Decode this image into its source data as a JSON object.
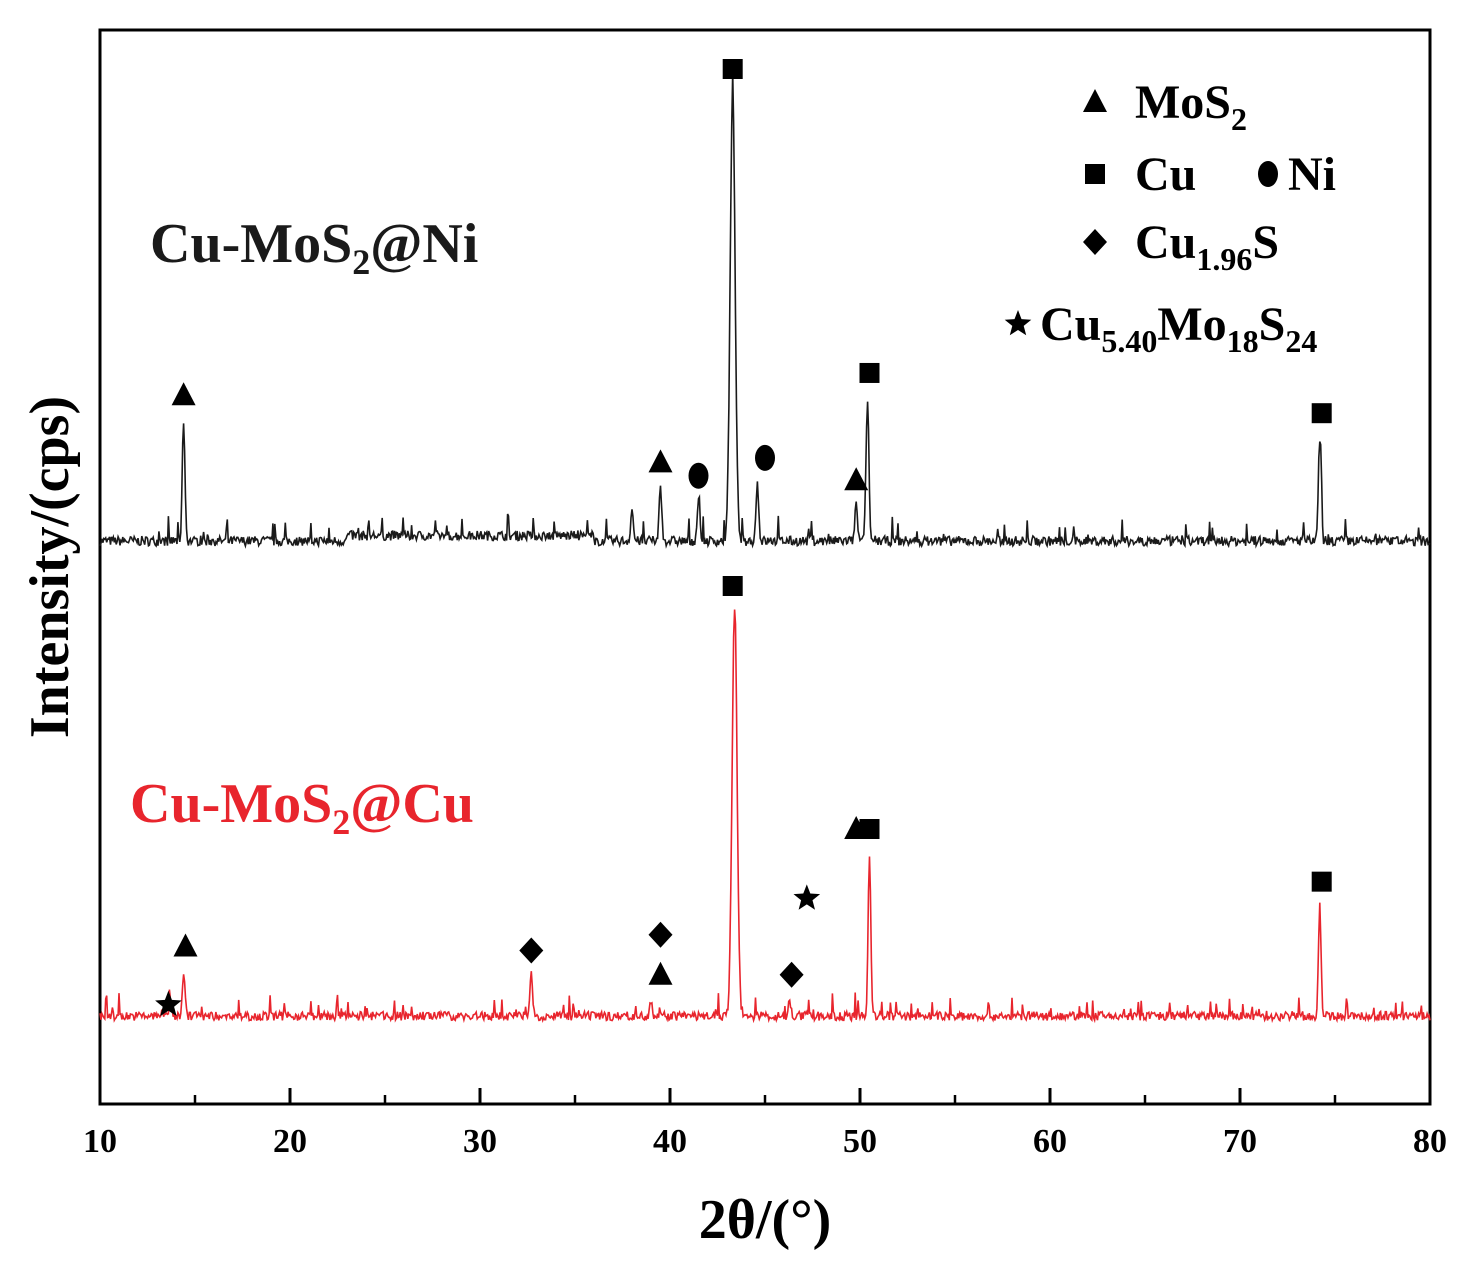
{
  "chart_data": {
    "type": "line",
    "xlabel": "2θ/(°)",
    "ylabel": "Intensity/(cps)",
    "xlim": [
      10,
      80
    ],
    "x_ticks": [
      "10",
      "20",
      "30",
      "40",
      "50",
      "60",
      "70",
      "80"
    ],
    "grid": false,
    "legend_position": "top-right",
    "legend": [
      {
        "marker": "triangle",
        "parts": [
          {
            "t": "MoS"
          },
          {
            "t": "2",
            "sub": true
          }
        ]
      },
      {
        "marker": "square",
        "parts": [
          {
            "t": "Cu "
          }
        ],
        "marker2": "circle",
        "parts2": [
          {
            "t": "Ni"
          }
        ]
      },
      {
        "marker": "diamond",
        "parts": [
          {
            "t": "Cu"
          },
          {
            "t": "1.96",
            "sub": true
          },
          {
            "t": "S"
          }
        ]
      },
      {
        "marker": "star",
        "parts": [
          {
            "t": "Cu"
          },
          {
            "t": "5.40",
            "sub": true
          },
          {
            "t": "Mo"
          },
          {
            "t": "18",
            "sub": true
          },
          {
            "t": "S"
          },
          {
            "t": "24",
            "sub": true
          }
        ]
      }
    ],
    "series": [
      {
        "name_parts": [
          {
            "t": "Cu-MoS"
          },
          {
            "t": "2",
            "sub": true
          },
          {
            "t": "@Ni"
          }
        ],
        "color": "#1a1a1a",
        "peaks": [
          {
            "x": 14.4,
            "h": 0.27
          },
          {
            "x": 38.0,
            "h": 0.07
          },
          {
            "x": 39.5,
            "h": 0.12
          },
          {
            "x": 41.5,
            "h": 0.09
          },
          {
            "x": 43.3,
            "h": 1.0
          },
          {
            "x": 44.6,
            "h": 0.13
          },
          {
            "x": 49.8,
            "h": 0.08
          },
          {
            "x": 50.4,
            "h": 0.32
          },
          {
            "x": 74.2,
            "h": 0.23
          }
        ],
        "markers": [
          {
            "type": "triangle",
            "x": 14.4
          },
          {
            "type": "triangle",
            "x": 39.5
          },
          {
            "type": "circle",
            "x": 41.5
          },
          {
            "type": "square",
            "x": 43.3
          },
          {
            "type": "circle",
            "x": 45.0
          },
          {
            "type": "triangle",
            "x": 49.8
          },
          {
            "type": "square",
            "x": 50.5
          },
          {
            "type": "square",
            "x": 74.3
          }
        ]
      },
      {
        "name_parts": [
          {
            "t": "Cu-MoS"
          },
          {
            "t": "2",
            "sub": true
          },
          {
            "t": "@Cu"
          }
        ],
        "color": "#e8252d",
        "peaks": [
          {
            "x": 13.7,
            "h": 0.04
          },
          {
            "x": 14.4,
            "h": 0.11
          },
          {
            "x": 32.7,
            "h": 0.1
          },
          {
            "x": 39.0,
            "h": 0.04
          },
          {
            "x": 43.4,
            "h": 1.0
          },
          {
            "x": 46.3,
            "h": 0.04
          },
          {
            "x": 50.5,
            "h": 0.4
          },
          {
            "x": 74.2,
            "h": 0.27
          }
        ],
        "markers": [
          {
            "type": "star",
            "x": 13.6
          },
          {
            "type": "triangle",
            "x": 14.5
          },
          {
            "type": "diamond",
            "x": 32.7
          },
          {
            "type": "diamond",
            "x": 39.5
          },
          {
            "type": "triangle",
            "x": 39.5
          },
          {
            "type": "square",
            "x": 43.3
          },
          {
            "type": "star",
            "x": 47.2
          },
          {
            "type": "diamond",
            "x": 46.4
          },
          {
            "type": "triangle",
            "x": 49.8
          },
          {
            "type": "square",
            "x": 50.5
          },
          {
            "type": "square",
            "x": 74.3
          }
        ]
      }
    ]
  }
}
